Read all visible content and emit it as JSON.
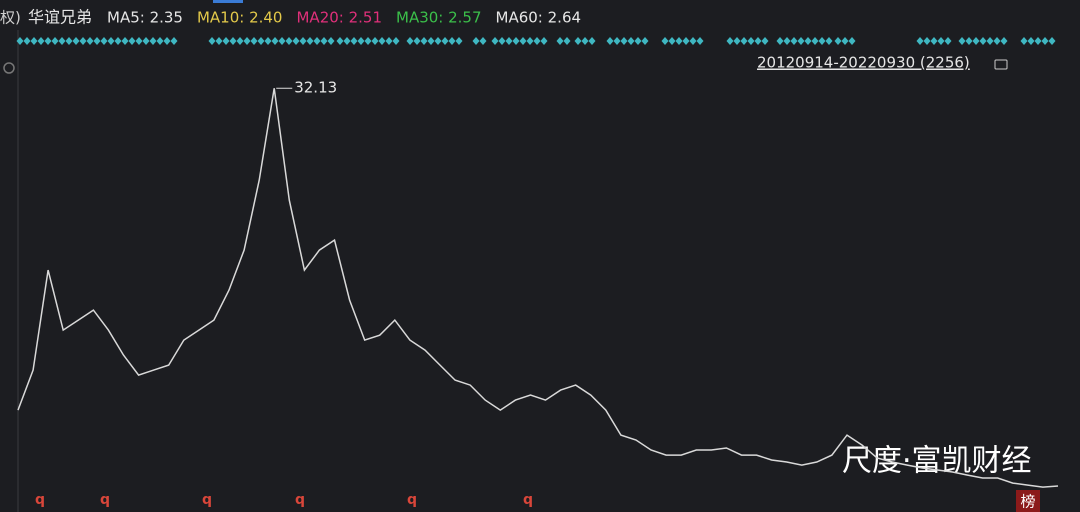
{
  "header": {
    "prefix": "权)",
    "title": "华谊兄弟",
    "indicators": [
      {
        "label": "MA5: 2.35",
        "color": "#e6e6e6"
      },
      {
        "label": "MA10: 2.40",
        "color": "#e3c94a"
      },
      {
        "label": "MA20: 2.51",
        "color": "#e0307a"
      },
      {
        "label": "MA30: 2.57",
        "color": "#3bbf4a"
      },
      {
        "label": "MA60: 2.64",
        "color": "#e6e6e6"
      }
    ],
    "range": "20120914-20220930 (2256)"
  },
  "chart_data": {
    "type": "line",
    "color": "#d9d9d9",
    "values": [
      7.98,
      10.98,
      18.48,
      13.98,
      14.73,
      15.48,
      13.98,
      12.1,
      10.6,
      10.98,
      11.35,
      13.23,
      13.98,
      14.73,
      16.98,
      19.98,
      25.23,
      32.13,
      23.73,
      18.48,
      19.98,
      20.73,
      16.23,
      13.23,
      13.6,
      14.73,
      13.23,
      12.48,
      11.35,
      10.23,
      9.85,
      8.73,
      7.98,
      8.73,
      9.1,
      8.73,
      9.48,
      9.85,
      9.1,
      7.98,
      6.1,
      5.73,
      4.98,
      4.6,
      4.6,
      4.98,
      4.98,
      5.13,
      4.6,
      4.6,
      4.23,
      4.08,
      3.85,
      4.08,
      4.6,
      6.1,
      5.35,
      4.38,
      4.08,
      3.85,
      3.63,
      3.48,
      3.33,
      3.1,
      2.88,
      2.88,
      2.5,
      2.35,
      2.2,
      2.28
    ],
    "ylim": [
      1.23,
      36.5
    ]
  },
  "markers": [
    "q",
    "q",
    "q",
    "q",
    "q",
    "q"
  ],
  "badge": "榜",
  "watermark": "尺度·富凯财经"
}
